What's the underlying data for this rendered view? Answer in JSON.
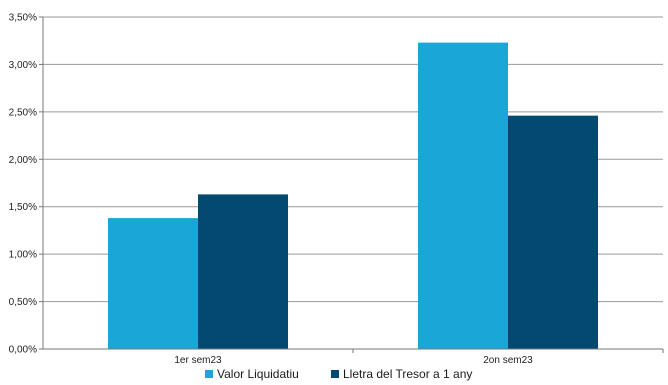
{
  "chart_data": {
    "type": "bar",
    "categories": [
      "1er sem23",
      "2on sem23"
    ],
    "series": [
      {
        "name": "Valor Liquidatiu",
        "values": [
          1.38,
          3.23
        ],
        "color": "#1aa6d6"
      },
      {
        "name": "Lletra del Tresor a 1 any",
        "values": [
          1.63,
          2.46
        ],
        "color": "#044a70"
      }
    ],
    "ylim": [
      0,
      3.5
    ],
    "ytick_labels": [
      "0,00%",
      "0,50%",
      "1,00%",
      "1,50%",
      "2,00%",
      "2,50%",
      "3,00%",
      "3,50%"
    ],
    "ytick_values": [
      0,
      0.5,
      1.0,
      1.5,
      2.0,
      2.5,
      3.0,
      3.5
    ],
    "grid": true,
    "legend_position": "bottom"
  }
}
